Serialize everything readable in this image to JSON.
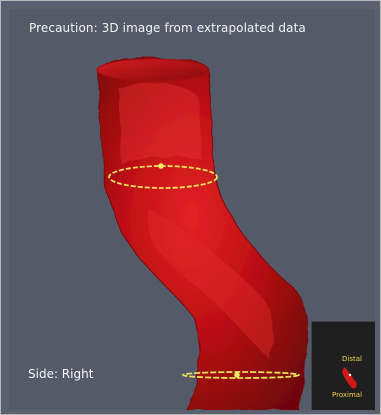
{
  "viewer": {
    "warning_text": "Precaution: 3D image from extrapolated data",
    "side_label": "Side: Right"
  },
  "orientation_widget": {
    "distal_label": "Distal",
    "proximal_label": "Proximal"
  },
  "colors": {
    "background": "#555a68",
    "vessel": "#b90f14",
    "vessel_highlight": "#e31d1f",
    "measurement_ring": "#e8e15a",
    "widget_background": "#1f1f1f"
  }
}
